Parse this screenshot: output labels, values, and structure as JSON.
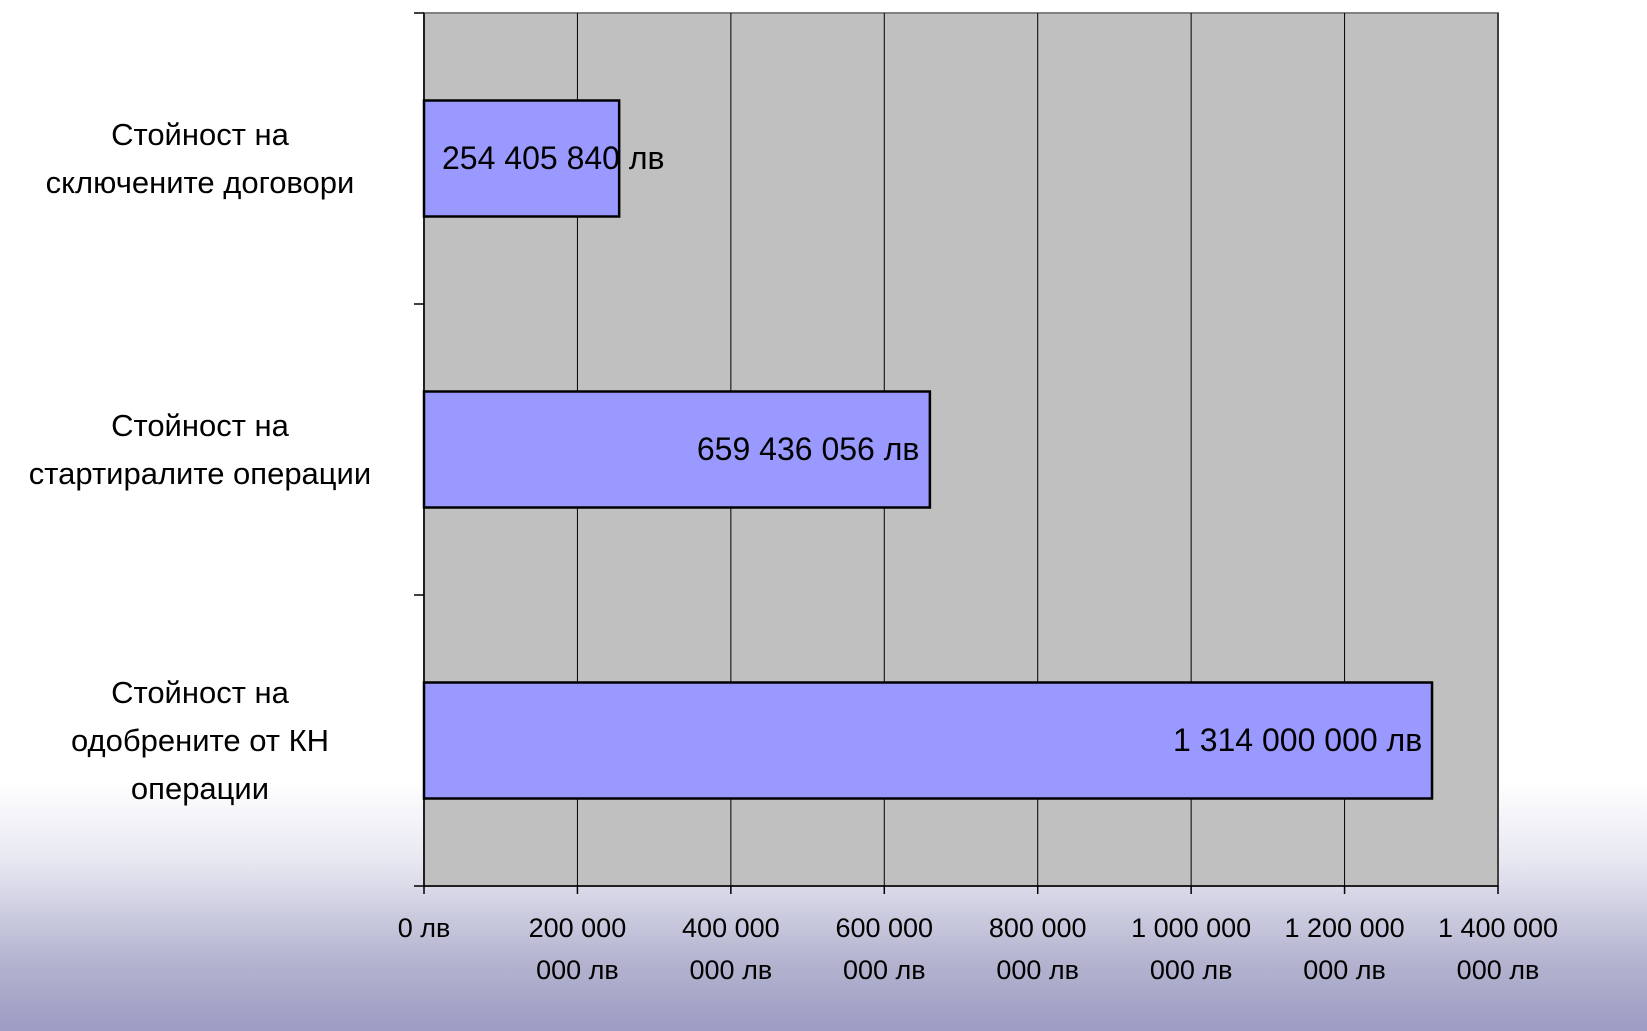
{
  "chart_data": {
    "type": "bar",
    "orientation": "horizontal",
    "categories": [
      "Стойност на\nсключените договори",
      "Стойност на\nстартиралите операции",
      "Стойност на\nодобрените от КН\nоперации"
    ],
    "values": [
      254405840,
      659436056,
      1314000000
    ],
    "data_labels": [
      "254 405 840 лв",
      "659 436 056 лв",
      "1 314 000 000 лв"
    ],
    "xlim": [
      0,
      1400000000
    ],
    "x_ticks": [
      0,
      200000000,
      400000000,
      600000000,
      800000000,
      1000000000,
      1200000000,
      1400000000
    ],
    "x_tick_labels": [
      "0 лв",
      "200 000\n000 лв",
      "400 000\n000 лв",
      "600 000\n000 лв",
      "800 000\n000 лв",
      "1 000 000\n000 лв",
      "1 200 000\n000 лв",
      "1 400 000\n000 лв"
    ],
    "grid": true,
    "legend": false,
    "colors": {
      "plot_background": "#c0c0c0",
      "bar_fill": "#9999ff",
      "bar_stroke": "#000000",
      "gridline": "#000000"
    }
  }
}
